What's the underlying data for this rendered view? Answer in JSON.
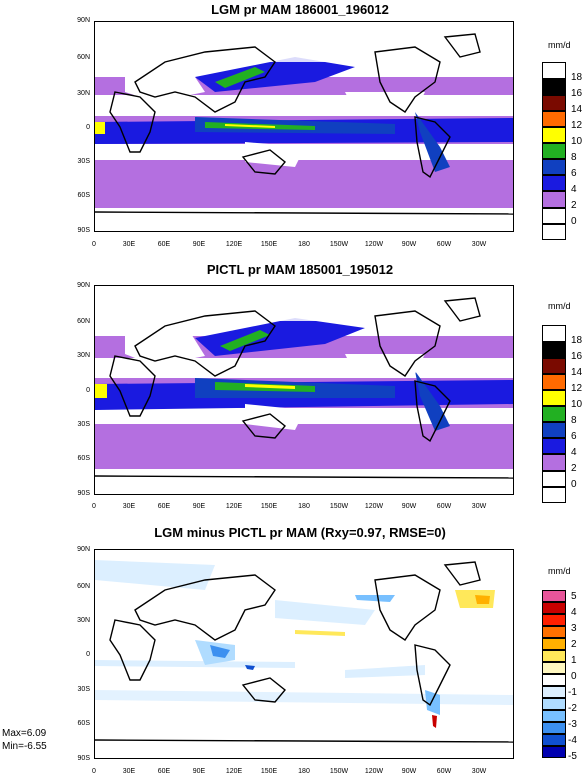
{
  "panels": [
    {
      "title": "LGM pr MAM 186001_196012",
      "units": "mm/d",
      "lat_labels": [
        "90N",
        "60N",
        "30N",
        "0",
        "30S",
        "60S",
        "90S"
      ],
      "lon_labels": [
        "0",
        "30E",
        "60E",
        "90E",
        "120E",
        "150E",
        "180",
        "150W",
        "120W",
        "90W",
        "60W",
        "30W"
      ],
      "colorbar": {
        "labels": [
          "18",
          "16",
          "14",
          "12",
          "10",
          "8",
          "6",
          "4",
          "2",
          "0"
        ],
        "colors": [
          "#ffffff",
          "#000000",
          "#7a0a00",
          "#ff6a00",
          "#ffff00",
          "#22b022",
          "#1040c0",
          "#1a1ae0",
          "#b46fe0",
          "#ffffff",
          "#ffffff"
        ]
      }
    },
    {
      "title": "PICTL pr MAM 185001_195012",
      "units": "mm/d",
      "lat_labels": [
        "90N",
        "60N",
        "30N",
        "0",
        "30S",
        "60S",
        "90S"
      ],
      "lon_labels": [
        "0",
        "30E",
        "60E",
        "90E",
        "120E",
        "150E",
        "180",
        "150W",
        "120W",
        "90W",
        "60W",
        "30W"
      ],
      "colorbar": {
        "labels": [
          "18",
          "16",
          "14",
          "12",
          "10",
          "8",
          "6",
          "4",
          "2",
          "0"
        ],
        "colors": [
          "#ffffff",
          "#000000",
          "#7a0a00",
          "#ff6a00",
          "#ffff00",
          "#22b022",
          "#1040c0",
          "#1a1ae0",
          "#b46fe0",
          "#ffffff",
          "#ffffff"
        ]
      }
    },
    {
      "title": "LGM minus PICTL pr MAM (Rxy=0.97, RMSE=0)",
      "units": "mm/d",
      "lat_labels": [
        "90N",
        "60N",
        "30N",
        "0",
        "30S",
        "60S",
        "90S"
      ],
      "lon_labels": [
        "0",
        "30E",
        "60E",
        "90E",
        "120E",
        "150E",
        "180",
        "150W",
        "120W",
        "90W",
        "60W",
        "30W"
      ],
      "colorbar": {
        "labels": [
          "5",
          "4",
          "3",
          "2",
          "1",
          "0",
          "-1",
          "-2",
          "-3",
          "-4",
          "-5"
        ],
        "colors": [
          "#e8559a",
          "#c80000",
          "#ff2000",
          "#ff7000",
          "#ffb000",
          "#ffe85a",
          "#fff8c0",
          "#ffffff",
          "#dcefff",
          "#b0dcff",
          "#78c0ff",
          "#3c90f0",
          "#1050d0",
          "#0000b0"
        ]
      },
      "max_text": "Max=6.09",
      "min_text": "Min=-6.55"
    }
  ]
}
